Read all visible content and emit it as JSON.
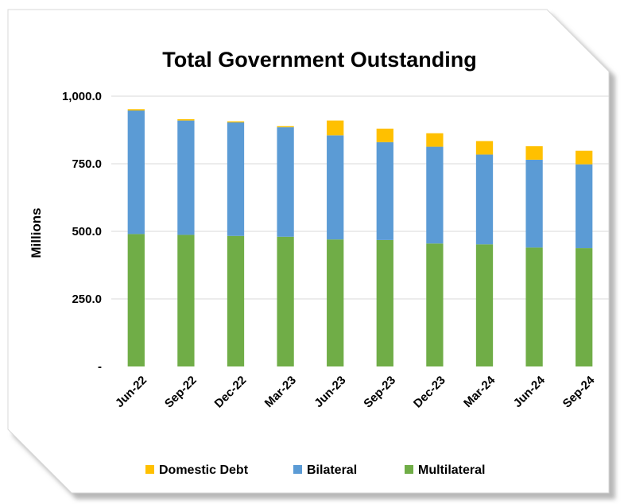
{
  "chart_data": {
    "type": "bar",
    "stacked": true,
    "title": "Total Government Outstanding",
    "ylabel": "Millions",
    "xlabel": "",
    "ylim": [
      0,
      1000
    ],
    "yticks": [
      {
        "value": 0,
        "label": "-"
      },
      {
        "value": 250,
        "label": "250.0"
      },
      {
        "value": 500,
        "label": "500.0"
      },
      {
        "value": 750,
        "label": "750.0"
      },
      {
        "value": 1000,
        "label": "1,000.0"
      }
    ],
    "grid": true,
    "legend_position": "bottom",
    "categories": [
      "Jun-22",
      "Sep-22",
      "Dec-22",
      "Mar-23",
      "Jun-23",
      "Sep-23",
      "Dec-23",
      "Mar-24",
      "Jun-24",
      "Sep-24"
    ],
    "series": [
      {
        "name": "Multilateral",
        "color": "#70AD47",
        "values": [
          490,
          487,
          483,
          480,
          470,
          468,
          455,
          452,
          440,
          438
        ]
      },
      {
        "name": "Bilateral",
        "color": "#5B9BD5",
        "values": [
          457,
          423,
          420,
          405,
          385,
          362,
          358,
          332,
          325,
          310
        ]
      },
      {
        "name": "Domestic Debt",
        "color": "#FFC000",
        "values": [
          5,
          5,
          4,
          4,
          55,
          50,
          50,
          50,
          50,
          50
        ]
      }
    ],
    "legend_order": [
      "Domestic Debt",
      "Bilateral",
      "Multilateral"
    ]
  }
}
